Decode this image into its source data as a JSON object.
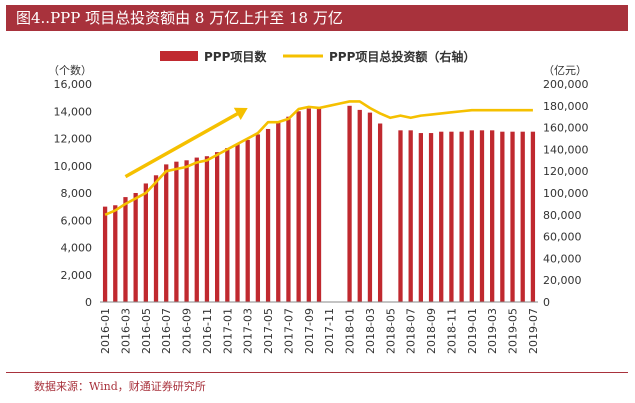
{
  "title": "图4..PPP 项目总投资额由 8 万亿上升至 18 万亿",
  "source": "数据来源：Wind，财通证券研究所",
  "colors": {
    "bars": "#c0292f",
    "line": "#f5c000",
    "arrow": "#f5c000",
    "title_bg": "#a8323c",
    "text": "#333333"
  },
  "chart_data": {
    "type": "bar+line",
    "title": "图4..PPP 项目总投资额由 8 万亿上升至 18 万亿",
    "y_left_label": "（个数）",
    "y_right_label": "（亿元）",
    "ylim_left": [
      0,
      16000
    ],
    "ylim_right": [
      0,
      200000
    ],
    "y_left_ticks": [
      "0",
      "2,000",
      "4,000",
      "6,000",
      "8,000",
      "10,000",
      "12,000",
      "14,000",
      "16,000"
    ],
    "y_right_ticks": [
      "0",
      "20,000",
      "40,000",
      "60,000",
      "80,000",
      "100,000",
      "120,000",
      "140,000",
      "160,000",
      "180,000",
      "200,000"
    ],
    "x_tick_labels": [
      "2016-01",
      "2016-03",
      "2016-05",
      "2016-07",
      "2016-09",
      "2016-11",
      "2017-01",
      "2017-03",
      "2017-05",
      "2017-07",
      "2017-09",
      "2017-11",
      "2018-01",
      "2018-03",
      "2018-05",
      "2018-07",
      "2018-09",
      "2018-11",
      "2019-01",
      "2019-03",
      "2019-05",
      "2019-07"
    ],
    "legend": {
      "bars": "PPP项目数",
      "line": "PPP项目总投资额（右轴）",
      "position": "top"
    },
    "annotation_arrow": {
      "from": {
        "x": "2016-03",
        "y": 115000
      },
      "to": {
        "x": "2017-03",
        "y": 178000
      }
    },
    "categories": [
      "2016-01",
      "2016-02",
      "2016-03",
      "2016-04",
      "2016-05",
      "2016-06",
      "2016-07",
      "2016-08",
      "2016-09",
      "2016-10",
      "2016-11",
      "2016-12",
      "2017-01",
      "2017-02",
      "2017-03",
      "2017-04",
      "2017-05",
      "2017-06",
      "2017-07",
      "2017-08",
      "2017-09",
      "2017-10",
      "2017-11",
      "2017-12",
      "2018-01",
      "2018-02",
      "2018-03",
      "2018-04",
      "2018-05",
      "2018-06",
      "2018-07",
      "2018-08",
      "2018-09",
      "2018-10",
      "2018-11",
      "2018-12",
      "2019-01",
      "2019-02",
      "2019-03",
      "2019-04",
      "2019-05",
      "2019-06",
      "2019-07"
    ],
    "series": [
      {
        "name": "PPP项目数",
        "axis": "left",
        "type": "bar",
        "values": [
          7000,
          7100,
          7700,
          8000,
          8700,
          9300,
          10100,
          10300,
          10400,
          10600,
          10700,
          11000,
          11300,
          11600,
          11900,
          12300,
          12700,
          13200,
          13600,
          14000,
          14200,
          14300,
          null,
          null,
          14400,
          14100,
          13900,
          13100,
          null,
          12600,
          12600,
          12400,
          12400,
          12500,
          12500,
          12500,
          12600,
          12600,
          12600,
          12500,
          12500,
          12500,
          12500
        ]
      },
      {
        "name": "PPP项目总投资额（右轴）",
        "axis": "right",
        "type": "line",
        "values": [
          80000,
          84000,
          90000,
          95000,
          100000,
          110000,
          120000,
          122000,
          124000,
          128000,
          130000,
          135000,
          140000,
          145000,
          150000,
          155000,
          165000,
          165000,
          168000,
          177000,
          179000,
          178000,
          180000,
          182000,
          184000,
          184000,
          178000,
          173000,
          169000,
          171000,
          169000,
          171000,
          172000,
          173000,
          174000,
          175000,
          176000,
          176000,
          176000,
          176000,
          176000,
          176000,
          176000
        ]
      }
    ]
  }
}
